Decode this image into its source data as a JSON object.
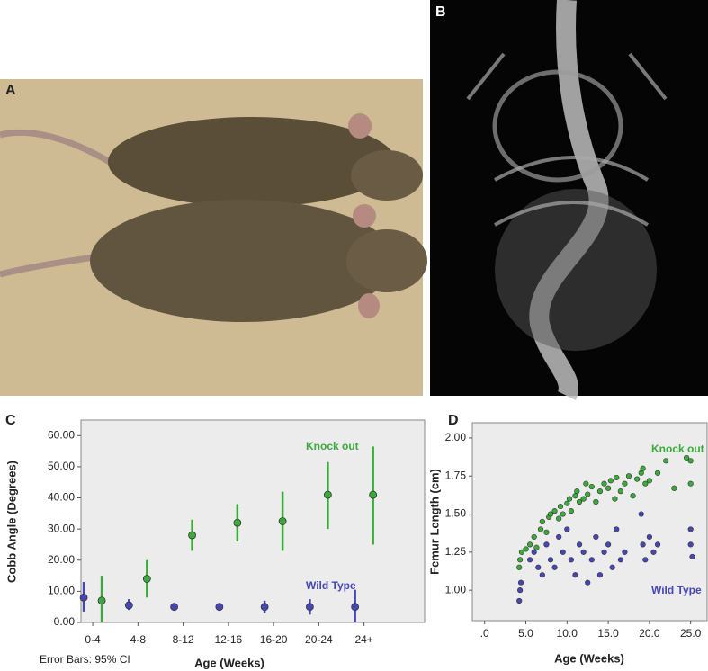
{
  "panels": [
    {
      "label": "A"
    },
    {
      "label": "B"
    },
    {
      "label": "C"
    },
    {
      "label": "D"
    }
  ],
  "chart_data": [
    {
      "type": "errorbar",
      "y_label": "Cobb Angle (Degrees)",
      "x_label": "Age (Weeks)",
      "note": "Error Bars: 95% CI",
      "categories": [
        "0-4",
        "4-8",
        "8-12",
        "12-16",
        "16-20",
        "20-24",
        "24+"
      ],
      "series": [
        {
          "name": "Wild Type",
          "color": "#4646b4",
          "values": [
            8,
            5.5,
            5,
            5,
            5,
            5,
            5
          ],
          "ci_low": [
            3.5,
            4,
            4,
            4,
            3,
            2.5,
            0
          ],
          "ci_high": [
            13,
            7.5,
            6,
            6,
            7,
            7.5,
            10.5
          ]
        },
        {
          "name": "Knock out",
          "color": "#3aaa3a",
          "values": [
            7,
            14,
            28,
            32,
            32.5,
            41,
            41
          ],
          "ci_low": [
            0,
            8,
            23,
            26,
            23,
            30,
            25
          ],
          "ci_high": [
            15,
            20,
            33,
            38,
            42,
            51.5,
            56.5
          ]
        }
      ],
      "ylim": [
        0,
        65
      ],
      "yticks": [
        {
          "value": 0,
          "label": "0.00"
        },
        {
          "value": 10,
          "label": "10.00"
        },
        {
          "value": 20,
          "label": "20.00"
        },
        {
          "value": 30,
          "label": "30.00"
        },
        {
          "value": 40,
          "label": "40.00"
        },
        {
          "value": 50,
          "label": "50.00"
        },
        {
          "value": 60,
          "label": "60.00"
        }
      ]
    },
    {
      "type": "scatter",
      "y_label": "Femur Length (cm)",
      "x_label": "Age (Weeks)",
      "series": [
        {
          "name": "Knock out",
          "color": "#3aaa3a",
          "x": [
            4.2,
            4.3,
            4.5,
            5,
            5.5,
            6,
            6.3,
            6.8,
            7,
            7.5,
            7.8,
            8,
            8.5,
            9,
            9.2,
            9.5,
            10,
            10.3,
            10.5,
            11,
            11.2,
            11.5,
            12,
            12.3,
            12.5,
            13,
            13.5,
            14,
            14.5,
            15,
            15.3,
            15.8,
            16,
            16.5,
            17,
            17.5,
            18,
            18.5,
            19,
            19.2,
            19.5,
            20,
            21,
            22,
            23,
            24.5,
            25,
            25
          ],
          "values": [
            1.15,
            1.2,
            1.25,
            1.27,
            1.3,
            1.35,
            1.28,
            1.4,
            1.45,
            1.38,
            1.48,
            1.5,
            1.52,
            1.47,
            1.55,
            1.5,
            1.57,
            1.6,
            1.52,
            1.62,
            1.65,
            1.58,
            1.6,
            1.7,
            1.63,
            1.68,
            1.58,
            1.65,
            1.7,
            1.67,
            1.72,
            1.6,
            1.74,
            1.65,
            1.7,
            1.75,
            1.62,
            1.73,
            1.77,
            1.8,
            1.7,
            1.72,
            1.77,
            1.85,
            1.67,
            1.87,
            1.85,
            1.7
          ]
        },
        {
          "name": "Wild Type",
          "color": "#4646b4",
          "x": [
            4.2,
            4.3,
            4.4,
            5.5,
            6,
            6.5,
            7,
            7.5,
            8,
            8.5,
            9,
            9.5,
            10,
            10.5,
            11,
            11.5,
            12,
            12.5,
            13,
            13.5,
            14,
            14.5,
            15,
            15.5,
            16,
            16.5,
            17,
            19,
            19.2,
            19.5,
            20,
            20.5,
            21,
            25,
            25,
            25.2
          ],
          "values": [
            0.93,
            1.0,
            1.05,
            1.2,
            1.25,
            1.15,
            1.1,
            1.3,
            1.2,
            1.15,
            1.35,
            1.25,
            1.4,
            1.2,
            1.1,
            1.3,
            1.25,
            1.05,
            1.2,
            1.35,
            1.1,
            1.25,
            1.3,
            1.15,
            1.4,
            1.2,
            1.25,
            1.5,
            1.3,
            1.2,
            1.35,
            1.25,
            1.3,
            1.4,
            1.3,
            1.22
          ]
        }
      ],
      "xlim": [
        -1.5,
        27
      ],
      "ylim": [
        0.8,
        2.1
      ],
      "xticks": [
        {
          "value": 0,
          "label": ".0"
        },
        {
          "value": 5,
          "label": "5.0"
        },
        {
          "value": 10,
          "label": "10.0"
        },
        {
          "value": 15,
          "label": "15.0"
        },
        {
          "value": 20,
          "label": "20.0"
        },
        {
          "value": 25,
          "label": "25.0"
        }
      ],
      "yticks": [
        {
          "value": 1,
          "label": "1.00"
        },
        {
          "value": 1.25,
          "label": "1.25"
        },
        {
          "value": 1.5,
          "label": "1.50"
        },
        {
          "value": 1.75,
          "label": "1.75"
        },
        {
          "value": 2,
          "label": "2.00"
        }
      ]
    }
  ]
}
